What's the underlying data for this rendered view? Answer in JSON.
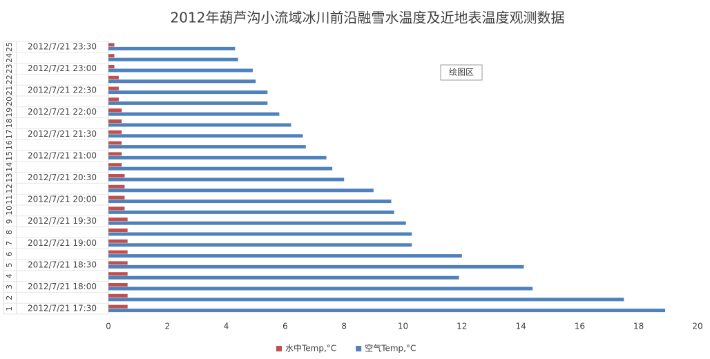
{
  "chart_data": {
    "type": "hbar",
    "title": "2012年葫芦沟小流域冰川前沿融雪水温度及近地表温度观测数据",
    "annotation": "绘图区",
    "categories": [
      "1",
      "2",
      "3",
      "4",
      "5",
      "6",
      "7",
      "8",
      "9",
      "10",
      "11",
      "12",
      "13",
      "14",
      "15",
      "16",
      "17",
      "18",
      "19",
      "20",
      "21",
      "22",
      "23",
      "24",
      "25"
    ],
    "time_labels": [
      "2012/7/21 17:30",
      null,
      "2012/7/21 18:00",
      null,
      "2012/7/21 18:30",
      null,
      "2012/7/21 19:00",
      null,
      "2012/7/21 19:30",
      null,
      "2012/7/21 20:00",
      null,
      "2012/7/21 20:30",
      null,
      "2012/7/21 21:00",
      null,
      "2012/7/21 21:30",
      null,
      "2012/7/21 22:00",
      null,
      "2012/7/21 22:30",
      null,
      "2012/7/21 23:00",
      null,
      "2012/7/21 23:30"
    ],
    "series": [
      {
        "name": "水中Temp,°C",
        "color": "#c0504d",
        "values": [
          0.65,
          0.65,
          0.65,
          0.65,
          0.65,
          0.65,
          0.65,
          0.65,
          0.65,
          0.55,
          0.55,
          0.55,
          0.55,
          0.45,
          0.45,
          0.45,
          0.45,
          0.45,
          0.45,
          0.35,
          0.35,
          0.35,
          0.2,
          0.2,
          0.2
        ]
      },
      {
        "name": "空气Temp,°C",
        "color": "#4f81bd",
        "values": [
          18.9,
          17.5,
          14.4,
          11.9,
          14.1,
          12.0,
          10.3,
          10.3,
          10.1,
          9.7,
          9.6,
          9.0,
          8.0,
          7.6,
          7.4,
          6.7,
          6.6,
          6.2,
          5.8,
          5.4,
          5.4,
          5.0,
          4.9,
          4.4,
          4.3
        ]
      }
    ],
    "xlim": [
      0,
      20
    ],
    "xticks": [
      0,
      2,
      4,
      6,
      8,
      10,
      12,
      14,
      16,
      18,
      20
    ],
    "legend": "bottom"
  }
}
